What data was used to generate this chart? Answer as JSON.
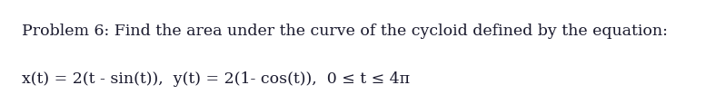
{
  "line1": "Problem 6: Find the area under the curve of the cycloid defined by the equation:",
  "line2": "x(t) = 2(t - sin(t)),  y(t) = 2(1- cos(t)),  0 ≤ t ≤ 4π",
  "background_color": "#ffffff",
  "text_color": "#1a1a2e",
  "font_size_line1": 12.5,
  "font_size_line2": 12.5,
  "fig_width": 7.88,
  "fig_height": 1.16,
  "dpi": 100
}
